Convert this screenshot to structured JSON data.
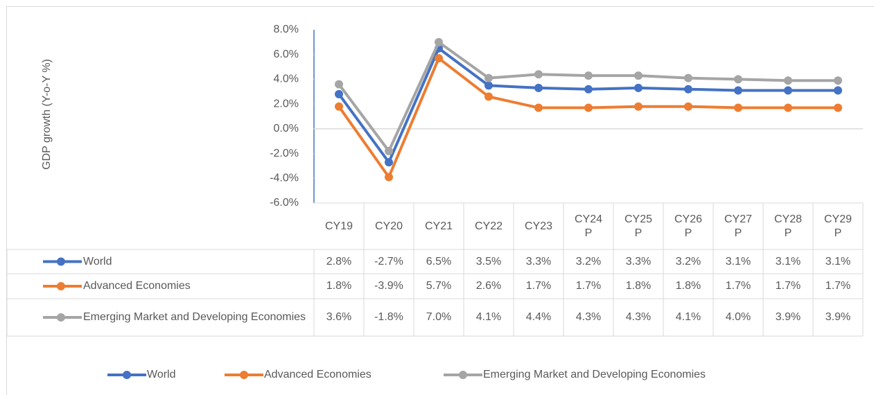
{
  "chart_data": {
    "type": "line",
    "y_label": "GDP growth (Y-o-Y %)",
    "categories": [
      "CY19",
      "CY20",
      "CY21",
      "CY22",
      "CY23",
      "CY24 P",
      "CY25 P",
      "CY26 P",
      "CY27 P",
      "CY28 P",
      "CY29 P"
    ],
    "ylim": [
      -6,
      8
    ],
    "yticks": [
      {
        "value": -6,
        "label": "-6.0%"
      },
      {
        "value": -4,
        "label": "-4.0%"
      },
      {
        "value": -2,
        "label": "-2.0%"
      },
      {
        "value": 0,
        "label": "0.0%"
      },
      {
        "value": 2,
        "label": "2.0%"
      },
      {
        "value": 4,
        "label": "4.0%"
      },
      {
        "value": 6,
        "label": "6.0%"
      },
      {
        "value": 8,
        "label": "8.0%"
      }
    ],
    "series": [
      {
        "name": "World",
        "color": "#4472c4",
        "values": [
          2.8,
          -2.7,
          6.5,
          3.5,
          3.3,
          3.2,
          3.3,
          3.2,
          3.1,
          3.1,
          3.1
        ],
        "value_labels": [
          "2.8%",
          "-2.7%",
          "6.5%",
          "3.5%",
          "3.3%",
          "3.2%",
          "3.3%",
          "3.2%",
          "3.1%",
          "3.1%",
          "3.1%"
        ]
      },
      {
        "name": "Advanced Economies",
        "color": "#ed7d31",
        "values": [
          1.8,
          -3.9,
          5.7,
          2.6,
          1.7,
          1.7,
          1.8,
          1.8,
          1.7,
          1.7,
          1.7
        ],
        "value_labels": [
          "1.8%",
          "-3.9%",
          "5.7%",
          "2.6%",
          "1.7%",
          "1.7%",
          "1.8%",
          "1.8%",
          "1.7%",
          "1.7%",
          "1.7%"
        ]
      },
      {
        "name": "Emerging Market and Developing Economies",
        "color": "#a5a5a5",
        "values": [
          3.6,
          -1.8,
          7.0,
          4.1,
          4.4,
          4.3,
          4.3,
          4.1,
          4.0,
          3.9,
          3.9
        ],
        "value_labels": [
          "3.6%",
          "-1.8%",
          "7.0%",
          "4.1%",
          "4.4%",
          "4.3%",
          "4.3%",
          "4.1%",
          "4.0%",
          "3.9%",
          "3.9%"
        ]
      }
    ]
  }
}
